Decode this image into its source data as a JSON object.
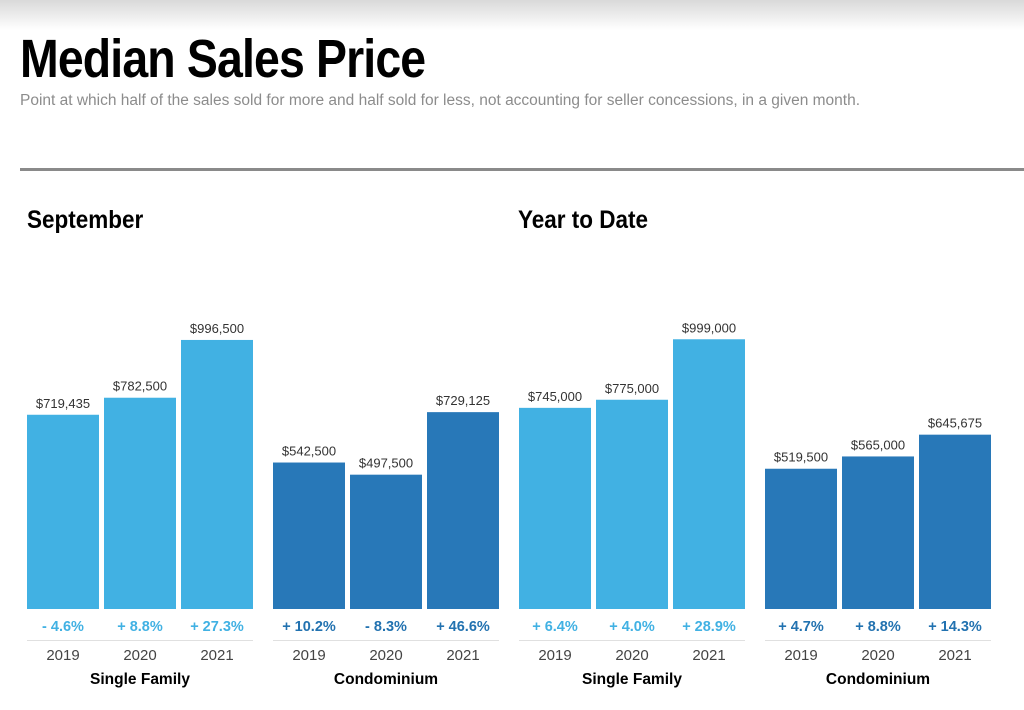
{
  "header": {
    "title": "Median Sales Price",
    "subtitle": "Point at which half of the sales sold for more and half sold for less, not accounting for seller concessions, in a given month."
  },
  "colors": {
    "single_family": "#41b1e3",
    "condominium": "#2878b8",
    "single_family_change": "#41b1e3",
    "condominium_change": "#2272b0",
    "axis_text": "#333333",
    "baseline": "#e0e0e0"
  },
  "chart_data": [
    {
      "type": "bar",
      "title": "September",
      "groups": [
        {
          "name": "Single Family",
          "categories": [
            "2019",
            "2020",
            "2021"
          ],
          "values": [
            719435,
            782500,
            996500
          ],
          "value_labels": [
            "$719,435",
            "$782,500",
            "$996,500"
          ],
          "changes": [
            "- 4.6%",
            "+ 8.8%",
            "+ 27.3%"
          ]
        },
        {
          "name": "Condominium",
          "categories": [
            "2019",
            "2020",
            "2021"
          ],
          "values": [
            542500,
            497500,
            729125
          ],
          "value_labels": [
            "$542,500",
            "$497,500",
            "$729,125"
          ],
          "changes": [
            "+ 10.2%",
            "- 8.3%",
            "+ 46.6%"
          ]
        }
      ]
    },
    {
      "type": "bar",
      "title": "Year to Date",
      "groups": [
        {
          "name": "Single Family",
          "categories": [
            "2019",
            "2020",
            "2021"
          ],
          "values": [
            745000,
            775000,
            999000
          ],
          "value_labels": [
            "$745,000",
            "$775,000",
            "$999,000"
          ],
          "changes": [
            "+ 6.4%",
            "+ 4.0%",
            "+ 28.9%"
          ]
        },
        {
          "name": "Condominium",
          "categories": [
            "2019",
            "2020",
            "2021"
          ],
          "values": [
            519500,
            565000,
            645675
          ],
          "value_labels": [
            "$519,500",
            "$565,000",
            "$645,675"
          ],
          "changes": [
            "+ 4.7%",
            "+ 8.8%",
            "+ 14.3%"
          ]
        }
      ]
    }
  ]
}
